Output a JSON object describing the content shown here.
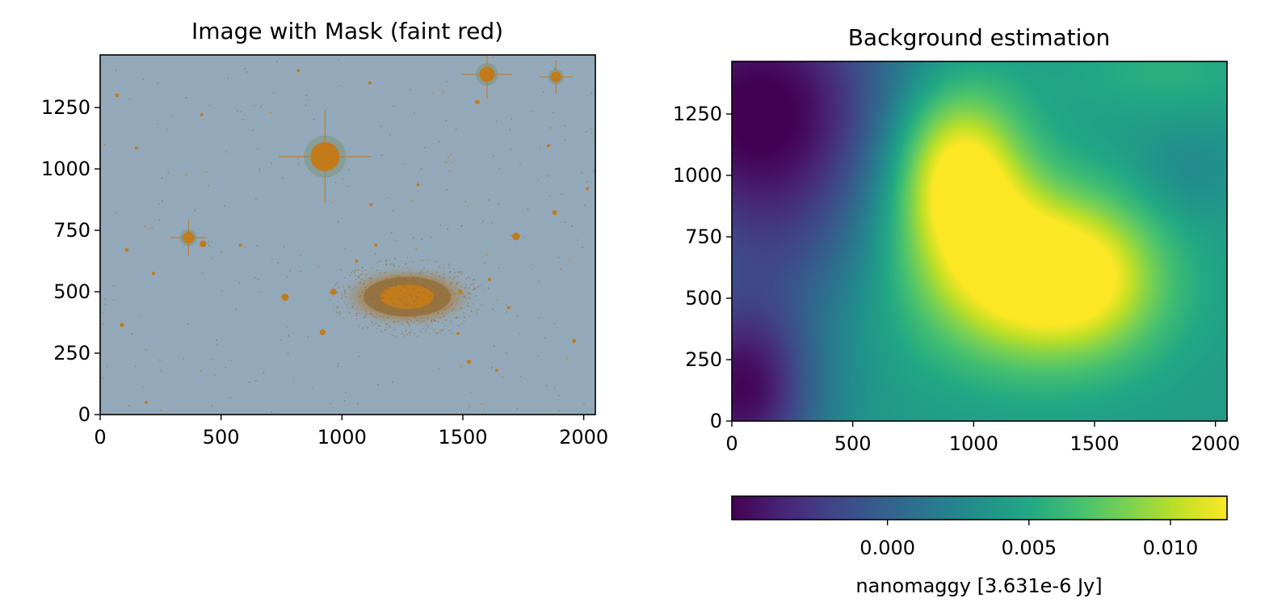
{
  "chart_data": [
    {
      "type": "heatmap",
      "title": "Image with Mask (faint red)",
      "xlabel": "",
      "ylabel": "",
      "xlim": [
        0,
        2048
      ],
      "ylim": [
        0,
        1464
      ],
      "x_ticks": [
        0,
        500,
        1000,
        1500,
        2000
      ],
      "y_ticks": [
        0,
        250,
        500,
        750,
        1000,
        1250
      ],
      "x_tick_labels": [
        "0",
        "500",
        "1000",
        "1500",
        "2000"
      ],
      "y_tick_labels": [
        "0",
        "250",
        "500",
        "750",
        "1000",
        "1250"
      ],
      "colors": {
        "background": "#93a9ba",
        "mask": "#c27a1b"
      },
      "sources": [
        {
          "x": 930,
          "y": 1050,
          "r": 60,
          "spikes": true
        },
        {
          "x": 1600,
          "y": 1385,
          "r": 32,
          "spikes": true
        },
        {
          "x": 1885,
          "y": 1375,
          "r": 22,
          "spikes": true
        },
        {
          "x": 365,
          "y": 720,
          "r": 24,
          "spikes": true
        },
        {
          "x": 425,
          "y": 695,
          "r": 14
        },
        {
          "x": 1720,
          "y": 725,
          "r": 16
        },
        {
          "x": 765,
          "y": 478,
          "r": 15
        },
        {
          "x": 965,
          "y": 500,
          "r": 13
        },
        {
          "x": 920,
          "y": 335,
          "r": 12
        },
        {
          "x": 1560,
          "y": 1272,
          "r": 9
        },
        {
          "x": 1880,
          "y": 822,
          "r": 10
        },
        {
          "x": 1490,
          "y": 500,
          "r": 9
        },
        {
          "x": 1525,
          "y": 215,
          "r": 9
        },
        {
          "x": 1960,
          "y": 300,
          "r": 8
        },
        {
          "x": 90,
          "y": 365,
          "r": 9
        },
        {
          "x": 110,
          "y": 670,
          "r": 8
        },
        {
          "x": 220,
          "y": 575,
          "r": 7
        },
        {
          "x": 70,
          "y": 1300,
          "r": 8
        },
        {
          "x": 1120,
          "y": 855,
          "r": 7
        },
        {
          "x": 1140,
          "y": 690,
          "r": 6
        },
        {
          "x": 1690,
          "y": 435,
          "r": 6
        },
        {
          "x": 1610,
          "y": 550,
          "r": 6
        },
        {
          "x": 1480,
          "y": 330,
          "r": 6
        },
        {
          "x": 1640,
          "y": 180,
          "r": 6
        },
        {
          "x": 190,
          "y": 50,
          "r": 6
        },
        {
          "x": 2015,
          "y": 920,
          "r": 5
        },
        {
          "x": 1855,
          "y": 1095,
          "r": 5
        },
        {
          "x": 580,
          "y": 690,
          "r": 5
        },
        {
          "x": 420,
          "y": 1220,
          "r": 5
        },
        {
          "x": 150,
          "y": 1085,
          "r": 5
        },
        {
          "x": 1115,
          "y": 1350,
          "r": 5
        },
        {
          "x": 1315,
          "y": 935,
          "r": 5
        },
        {
          "x": 1060,
          "y": 625,
          "r": 5
        },
        {
          "x": 820,
          "y": 1400,
          "r": 5
        }
      ],
      "galaxy": {
        "x": 1270,
        "y": 480,
        "rx": 190,
        "ry": 85
      }
    },
    {
      "type": "heatmap",
      "title": "Background estimation",
      "xlabel": "",
      "ylabel": "",
      "xlim": [
        0,
        2048
      ],
      "ylim": [
        0,
        1464
      ],
      "x_ticks": [
        0,
        500,
        1000,
        1500,
        2000
      ],
      "y_ticks": [
        0,
        250,
        500,
        750,
        1000,
        1250
      ],
      "x_tick_labels": [
        "0",
        "500",
        "1000",
        "1500",
        "2000"
      ],
      "y_tick_labels": [
        "0",
        "250",
        "500",
        "750",
        "1000",
        "1250"
      ],
      "colorbar": {
        "label": "nanomaggy [3.631e-6 Jy]",
        "vmin": -0.0055,
        "vmax": 0.012,
        "ticks": [
          0.0,
          0.005,
          0.01
        ],
        "tick_labels": [
          "0.000",
          "0.005",
          "0.010"
        ],
        "colormap": "viridis"
      },
      "baseline": 0.004,
      "components": [
        {
          "x": 930,
          "y": 1050,
          "sx": 190,
          "sy": 230,
          "amp": 0.0085
        },
        {
          "x": 1250,
          "y": 550,
          "sx": 330,
          "sy": 230,
          "amp": 0.0085
        },
        {
          "x": 1030,
          "y": 800,
          "sx": 260,
          "sy": 200,
          "amp": 0.0035
        },
        {
          "x": 1500,
          "y": 620,
          "sx": 200,
          "sy": 220,
          "amp": 0.003
        },
        {
          "x": 120,
          "y": 1250,
          "sx": 400,
          "sy": 420,
          "amp": -0.01
        },
        {
          "x": 40,
          "y": 120,
          "sx": 220,
          "sy": 270,
          "amp": -0.009
        },
        {
          "x": 1880,
          "y": 1010,
          "sx": 160,
          "sy": 140,
          "amp": -0.0013
        },
        {
          "x": 1800,
          "y": 1420,
          "sx": 300,
          "sy": 120,
          "amp": 0.0015
        },
        {
          "x": 250,
          "y": 650,
          "sx": 230,
          "sy": 200,
          "amp": -0.0012
        }
      ]
    }
  ]
}
